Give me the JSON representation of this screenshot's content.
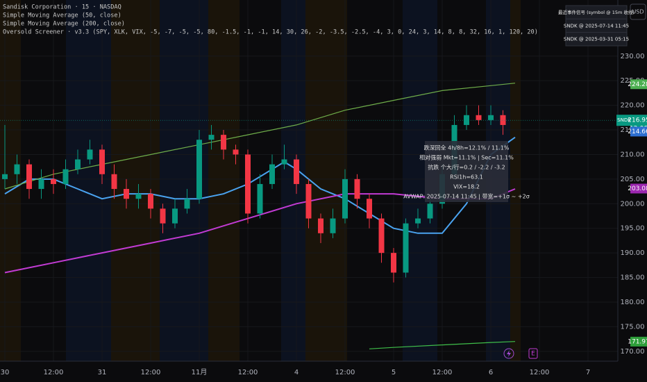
{
  "chart_data": {
    "type": "candlestick",
    "legend": [
      "Sandisk Corporation · 15 · NASDAQ",
      "Simple Moving Average (50, close)",
      "Simple Moving Average (200, close)",
      "Oversold Screener · v3.3 (SPY, XLK, VIX, -5, -7, -5, -5, 80, -1.5, -1, -1, 14, 30, 26, -2, -3.5, -2.5, -4, 3, 0, 24, 3, 14, 8, 8, 32, 16, 1, 120, 20)"
    ],
    "currency": "USD",
    "xlim": [
      -0.1,
      12.614
    ],
    "xticks": [
      {
        "value": 0,
        "label": "30"
      },
      {
        "value": 1,
        "label": "12:00"
      },
      {
        "value": 2,
        "label": "31"
      },
      {
        "value": 3,
        "label": "12:00"
      },
      {
        "value": 4,
        "label": "11月"
      },
      {
        "value": 5,
        "label": "12:00"
      },
      {
        "value": 6,
        "label": "4"
      },
      {
        "value": 7,
        "label": "12:00"
      },
      {
        "value": 8,
        "label": "5"
      },
      {
        "value": 9,
        "label": "12:00"
      },
      {
        "value": 10,
        "label": "6"
      },
      {
        "value": 11,
        "label": "12:00"
      },
      {
        "value": 12,
        "label": "7"
      }
    ],
    "ylim": [
      168,
      241.4
    ],
    "yticks": [
      {
        "value": 170,
        "label": "170.00"
      },
      {
        "value": 175,
        "label": "175.00"
      },
      {
        "value": 180,
        "label": "180.00"
      },
      {
        "value": 185,
        "label": "185.00"
      },
      {
        "value": 190,
        "label": "190.00"
      },
      {
        "value": 195,
        "label": "195.00"
      },
      {
        "value": 200,
        "label": "200.00"
      },
      {
        "value": 205,
        "label": "205.00"
      },
      {
        "value": 210,
        "label": "210.00"
      },
      {
        "value": 215,
        "label": "215.00"
      },
      {
        "value": 220,
        "label": "220.00"
      },
      {
        "value": 225,
        "label": "225.00"
      },
      {
        "value": 230,
        "label": "230.00"
      }
    ],
    "grid": true,
    "up_color": "#089981",
    "down_color": "#f23645",
    "x": [
      0,
      0.25,
      0.5,
      0.75,
      1,
      1.25,
      1.5,
      1.75,
      2,
      2.25,
      2.5,
      2.75,
      3,
      3.25,
      3.5,
      3.75,
      4,
      4.25,
      4.5,
      4.75,
      5,
      5.25,
      5.5,
      5.75,
      6,
      6.25,
      6.5,
      6.75,
      7,
      7.25,
      7.5,
      7.75,
      8,
      8.25,
      8.5,
      8.75,
      9,
      9.25,
      9.5,
      9.75,
      10,
      10.25
    ],
    "open": [
      205,
      206,
      208,
      203,
      205,
      204,
      207,
      209,
      211,
      206,
      203,
      201,
      202,
      199,
      196,
      199,
      201,
      213,
      214,
      211,
      210,
      198,
      204,
      208,
      209,
      204,
      197,
      194,
      197,
      205,
      201,
      197,
      190,
      186,
      196,
      197,
      200,
      206,
      216,
      218,
      217,
      218
    ],
    "high": [
      216,
      210,
      209,
      207,
      207,
      209,
      211,
      213,
      212,
      208,
      205,
      204,
      203,
      200,
      201,
      203,
      215,
      216,
      215,
      212,
      211,
      206,
      210,
      212,
      210,
      205,
      198,
      199,
      207,
      206,
      202,
      198,
      191,
      197,
      199,
      201,
      208,
      218,
      220,
      220,
      220,
      219
    ],
    "low": [
      203,
      204,
      201,
      201,
      202,
      203,
      206,
      208,
      204,
      201,
      199,
      199,
      197,
      194,
      195,
      198,
      200,
      211,
      209,
      208,
      196,
      197,
      203,
      207,
      202,
      195,
      192,
      193,
      196,
      199,
      195,
      188,
      184,
      185,
      195,
      196,
      199,
      205,
      215,
      216,
      216,
      214
    ],
    "close": [
      206,
      208,
      203,
      205,
      204,
      207,
      209,
      211,
      206,
      203,
      201,
      202,
      199,
      196,
      199,
      201,
      213,
      214,
      211,
      210,
      198,
      204,
      208,
      209,
      204,
      197,
      194,
      197,
      205,
      201,
      197,
      190,
      186,
      196,
      197,
      200,
      206,
      216,
      218,
      217,
      218,
      216
    ],
    "lines": [
      {
        "color": "#4aa3f0",
        "x": [
          0,
          0.5,
          1,
          1.5,
          2,
          2.5,
          3,
          3.5,
          4,
          4.5,
          5,
          5.5,
          5.75,
          6,
          6.5,
          7,
          7.5,
          8,
          8.5,
          9,
          9.5,
          10,
          10.5
        ],
        "values": [
          202,
          205,
          205,
          203,
          201,
          202,
          202,
          201,
          201,
          202,
          204,
          207,
          208.5,
          207,
          203,
          201,
          198,
          195,
          194,
          194,
          200,
          210,
          213.5
        ]
      },
      {
        "color": "#c23bd4",
        "x": [
          0,
          1,
          2,
          3,
          4,
          5,
          6,
          7,
          8,
          9,
          10,
          10.5
        ],
        "values": [
          186,
          188,
          190,
          192,
          194,
          197,
          200,
          202,
          202,
          201,
          201,
          203
        ]
      },
      {
        "color": "#6fae4a",
        "x": [
          0,
          1,
          2,
          3,
          4,
          5,
          6,
          7,
          8,
          9,
          10,
          10.5
        ],
        "values": [
          203,
          206,
          208,
          210,
          212,
          214,
          216,
          219,
          221,
          223,
          224,
          224.5
        ]
      },
      {
        "color": "#3fbf4a",
        "x": [
          7.5,
          8,
          9,
          10,
          10.5
        ],
        "values": [
          170.5,
          170.8,
          171.3,
          171.8,
          172
        ]
      }
    ],
    "price_tags": [
      {
        "value": 224.28,
        "color": "#4caf50"
      },
      {
        "value": 214.66,
        "color": "#2d6fd1"
      },
      {
        "value": 203.08,
        "color": "#9c27b0"
      },
      {
        "value": 171.97,
        "color": "#2e9e3a"
      }
    ],
    "last_price": {
      "symbol": "SNDK",
      "value": 216.95,
      "countdown": "12:06",
      "color": "#089981"
    },
    "tooltip": [
      "跌深回全 4h/8h=12.1% / 11.1%",
      "相对强弱 Mkt=11.1% | Sec=11.1%",
      "抗跌 个大/行=0.2 / -2.2 / -3.2",
      "RSI1h=63.1",
      "VIX=18.2",
      "AVWAP: 2025-07-14 11:45 | 带宽=+1σ ~ +2σ"
    ],
    "panel": [
      "最近事件信号 (symbol @ 15m 收线)",
      "SNDK @ 2025-07-14 11:45",
      "SNDK @ 2025-03-31 05:15"
    ],
    "event_marker": "E"
  }
}
